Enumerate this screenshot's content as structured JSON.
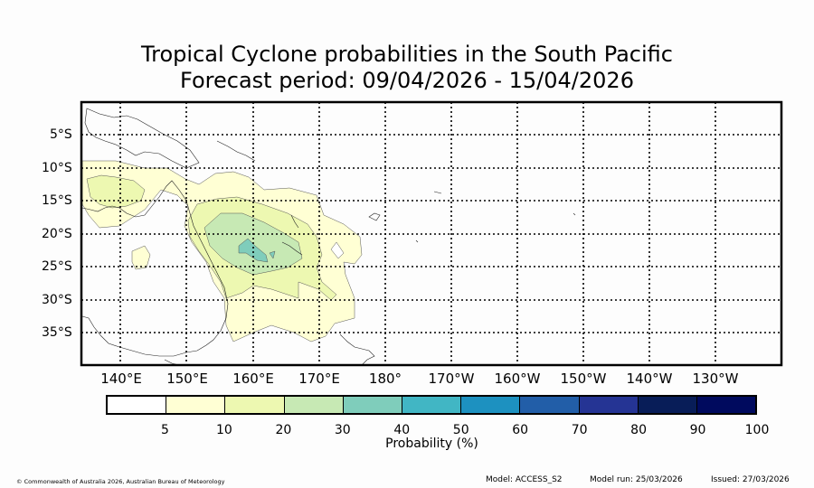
{
  "title": {
    "line1": "Tropical Cyclone probabilities in the South Pacific",
    "line2": "Forecast period: 09/04/2026 - 15/04/2026"
  },
  "map": {
    "lon_labels": [
      "140°E",
      "150°E",
      "160°E",
      "170°E",
      "180°",
      "170°W",
      "160°W",
      "150°W",
      "140°W",
      "130°W"
    ],
    "lat_labels": [
      "5°S",
      "10°S",
      "15°S",
      "20°S",
      "25°S",
      "30°S",
      "35°S"
    ],
    "gridlines": "dotted",
    "coastline_color": "#000000"
  },
  "colorbar": {
    "label": "Probability (%)",
    "ticks": [
      "5",
      "10",
      "20",
      "30",
      "40",
      "50",
      "60",
      "70",
      "80",
      "90",
      "100"
    ],
    "colors": [
      "#ffffff",
      "#ffffd4",
      "#edf8b1",
      "#c7e9b4",
      "#7fcdbb",
      "#41b6c4",
      "#1d91c0",
      "#225ea8",
      "#253494",
      "#081d58",
      "#000a5e"
    ]
  },
  "footer": {
    "copyright": "© Commonwealth of Australia 2026, Australian Bureau of Meteorology",
    "model": "Model: ACCESS_S2",
    "model_run": "Model run: 25/03/2026",
    "issued": "Issued: 27/03/2026"
  }
}
